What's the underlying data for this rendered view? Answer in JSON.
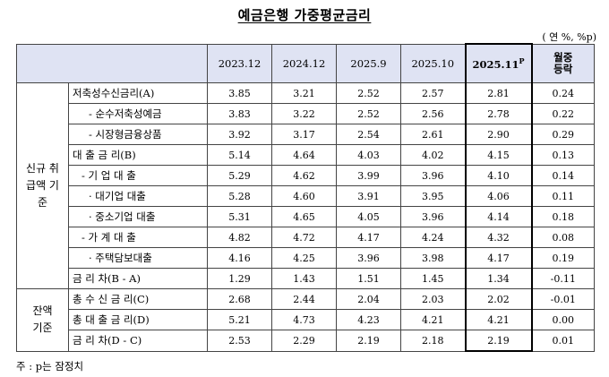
{
  "title": "예금은행 가중평균금리",
  "unit": "( 연 %, %p)",
  "note": "주 : p는 잠정치",
  "columns": [
    "2023.12",
    "2024.12",
    "2025.9",
    "2025.10",
    "2025.11",
    "월중 등락"
  ],
  "highlight_superscript": "P",
  "groups": {
    "new": "신규 취급액 기준",
    "balance": "잔액 기준"
  },
  "rows": [
    {
      "label": "저축성수신금리(A)",
      "indent": 0,
      "values": [
        "3.85",
        "3.21",
        "2.52",
        "2.57",
        "2.81",
        "0.24"
      ]
    },
    {
      "label": "- 순수저축성예금",
      "indent": 2,
      "values": [
        "3.83",
        "3.22",
        "2.52",
        "2.56",
        "2.78",
        "0.22"
      ]
    },
    {
      "label": "- 시장형금융상품",
      "indent": 2,
      "values": [
        "3.92",
        "3.17",
        "2.54",
        "2.61",
        "2.90",
        "0.29"
      ]
    },
    {
      "label": "대 출 금 리(B)",
      "indent": 0,
      "values": [
        "5.14",
        "4.64",
        "4.03",
        "4.02",
        "4.15",
        "0.13"
      ]
    },
    {
      "label": "- 기 업 대 출",
      "indent": 1,
      "values": [
        "5.29",
        "4.62",
        "3.99",
        "3.96",
        "4.10",
        "0.14"
      ]
    },
    {
      "label": "· 대기업 대출",
      "indent": 2,
      "values": [
        "5.28",
        "4.60",
        "3.91",
        "3.95",
        "4.06",
        "0.11"
      ]
    },
    {
      "label": "· 중소기업 대출",
      "indent": 2,
      "values": [
        "5.31",
        "4.65",
        "4.05",
        "3.96",
        "4.14",
        "0.18"
      ]
    },
    {
      "label": "- 가 계 대 출",
      "indent": 1,
      "values": [
        "4.82",
        "4.72",
        "4.17",
        "4.24",
        "4.32",
        "0.08"
      ]
    },
    {
      "label": "· 주택담보대출",
      "indent": 2,
      "values": [
        "4.16",
        "4.25",
        "3.96",
        "3.98",
        "4.17",
        "0.19"
      ]
    },
    {
      "label": "금 리 차(B - A)",
      "indent": 0,
      "values": [
        "1.29",
        "1.43",
        "1.51",
        "1.45",
        "1.34",
        "-0.11"
      ]
    },
    {
      "label": "총 수 신 금 리(C)",
      "indent": 0,
      "values": [
        "2.68",
        "2.44",
        "2.04",
        "2.03",
        "2.02",
        "-0.01"
      ]
    },
    {
      "label": "총 대 출 금 리(D)",
      "indent": 0,
      "values": [
        "5.21",
        "4.73",
        "4.23",
        "4.21",
        "4.21",
        "0.00"
      ]
    },
    {
      "label": "금 리 차(D - C)",
      "indent": 0,
      "values": [
        "2.53",
        "2.29",
        "2.19",
        "2.18",
        "2.19",
        "0.01"
      ]
    }
  ]
}
